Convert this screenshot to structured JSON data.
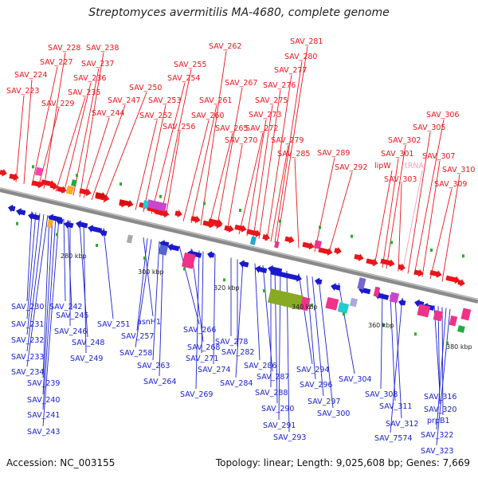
{
  "header": {
    "title": "Streptomyces avermitilis MA-4680, complete genome"
  },
  "footer": {
    "accession": "Accession: NC_003155",
    "summary": "Topology: linear; Length: 9,025,608 bp; Genes: 7,669"
  },
  "colors": {
    "top_label": "#e8161a",
    "bottom_label": "#1a22cc",
    "backbone": "#8a8a8a",
    "trna_label": "#f0a0c8"
  },
  "ruler": [
    "280 kbp",
    "300 kbp",
    "320 kbp",
    "340 kbp",
    "360 kbp",
    "380 kbp"
  ],
  "top_genes": [
    "SAV_223",
    "SAV_224",
    "SAV_227",
    "SAV_228",
    "SAV_229",
    "SAV_235",
    "SAV_236",
    "SAV_237",
    "SAV_238",
    "SAV_244",
    "SAV_247",
    "SAV_250",
    "SAV_252",
    "SAV_253",
    "SAV_254",
    "SAV_255",
    "SAV_256",
    "SAV_260",
    "SAV_261",
    "SAV_262",
    "SAV_265",
    "SAV_267",
    "SAV_270",
    "SAV_272",
    "SAV_273",
    "SAV_275",
    "SAV_276",
    "SAV_277",
    "SAV_279",
    "SAV_280",
    "SAV_281",
    "SAV_285",
    "SAV_289",
    "SAV_292",
    "lipW",
    "tRNA",
    "SAV_301",
    "SAV_302",
    "SAV_303",
    "SAV_305",
    "SAV_306",
    "SAV_307",
    "SAV_309",
    "SAV_310"
  ],
  "bottom_genes": [
    "SAV_230",
    "SAV_231",
    "SAV_232",
    "SAV_233",
    "SAV_234",
    "SAV_239",
    "SAV_240",
    "SAV_241",
    "SAV_242",
    "SAV_243",
    "SAV_245",
    "SAV_246",
    "SAV_248",
    "SAV_249",
    "SAV_251",
    "asnH1",
    "SAV_257",
    "SAV_258",
    "SAV_263",
    "SAV_264",
    "SAV_266",
    "SAV_268",
    "SAV_269",
    "SAV_271",
    "SAV_274",
    "SAV_278",
    "SAV_282",
    "SAV_284",
    "SAV_286",
    "SAV_287",
    "SAV_288",
    "SAV_290",
    "SAV_291",
    "SAV_293",
    "SAV_294",
    "SAV_296",
    "SAV_297",
    "SAV_300",
    "SAV_304",
    "SAV_308",
    "SAV_311",
    "SAV_312",
    "SAV_7574",
    "SAV_316",
    "SAV_320",
    "prpB1",
    "SAV_322",
    "SAV_323"
  ]
}
